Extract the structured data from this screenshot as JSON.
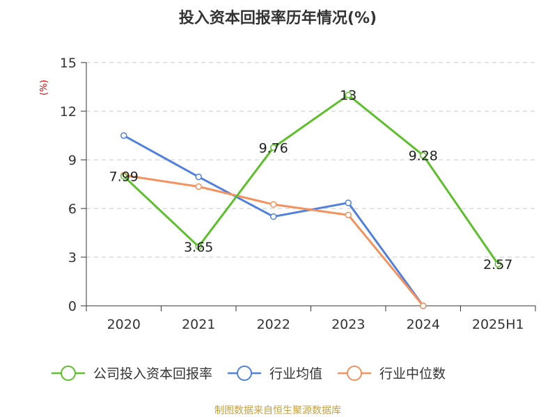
{
  "title": "投入资本回报率历年情况(%)",
  "source": "制图数据来自恒生聚源数据库",
  "colors": {
    "company": "#5cc02a",
    "average": "#4f80e0",
    "median": "#f5915c",
    "grid": "#c8c8c8",
    "axis": "#333333",
    "unit": "#e60000",
    "source": "#c8a040"
  },
  "chart_data": {
    "type": "line",
    "title": "投入资本回报率历年情况(%)",
    "ylabel": "(%)",
    "xlabel": "",
    "categories": [
      "2020",
      "2021",
      "2022",
      "2023",
      "2024",
      "2025H1"
    ],
    "ylim": [
      0,
      15
    ],
    "yticks": [
      0,
      3,
      6,
      9,
      12,
      15
    ],
    "grid": true,
    "legend_position": "bottom",
    "series": [
      {
        "name": "公司投入资本回报率",
        "color": "#5cc02a",
        "values": [
          7.99,
          3.65,
          9.76,
          13,
          9.28,
          2.57
        ],
        "labels": [
          "7.99",
          "3.65",
          "9.76",
          "13",
          "9.28",
          "2.57"
        ]
      },
      {
        "name": "行业均值",
        "color": "#4f80e0",
        "values": [
          10.5,
          7.95,
          5.5,
          6.35,
          0,
          null
        ]
      },
      {
        "name": "行业中位数",
        "color": "#f5915c",
        "values": [
          8.05,
          7.35,
          6.25,
          5.6,
          0,
          null
        ]
      }
    ]
  }
}
